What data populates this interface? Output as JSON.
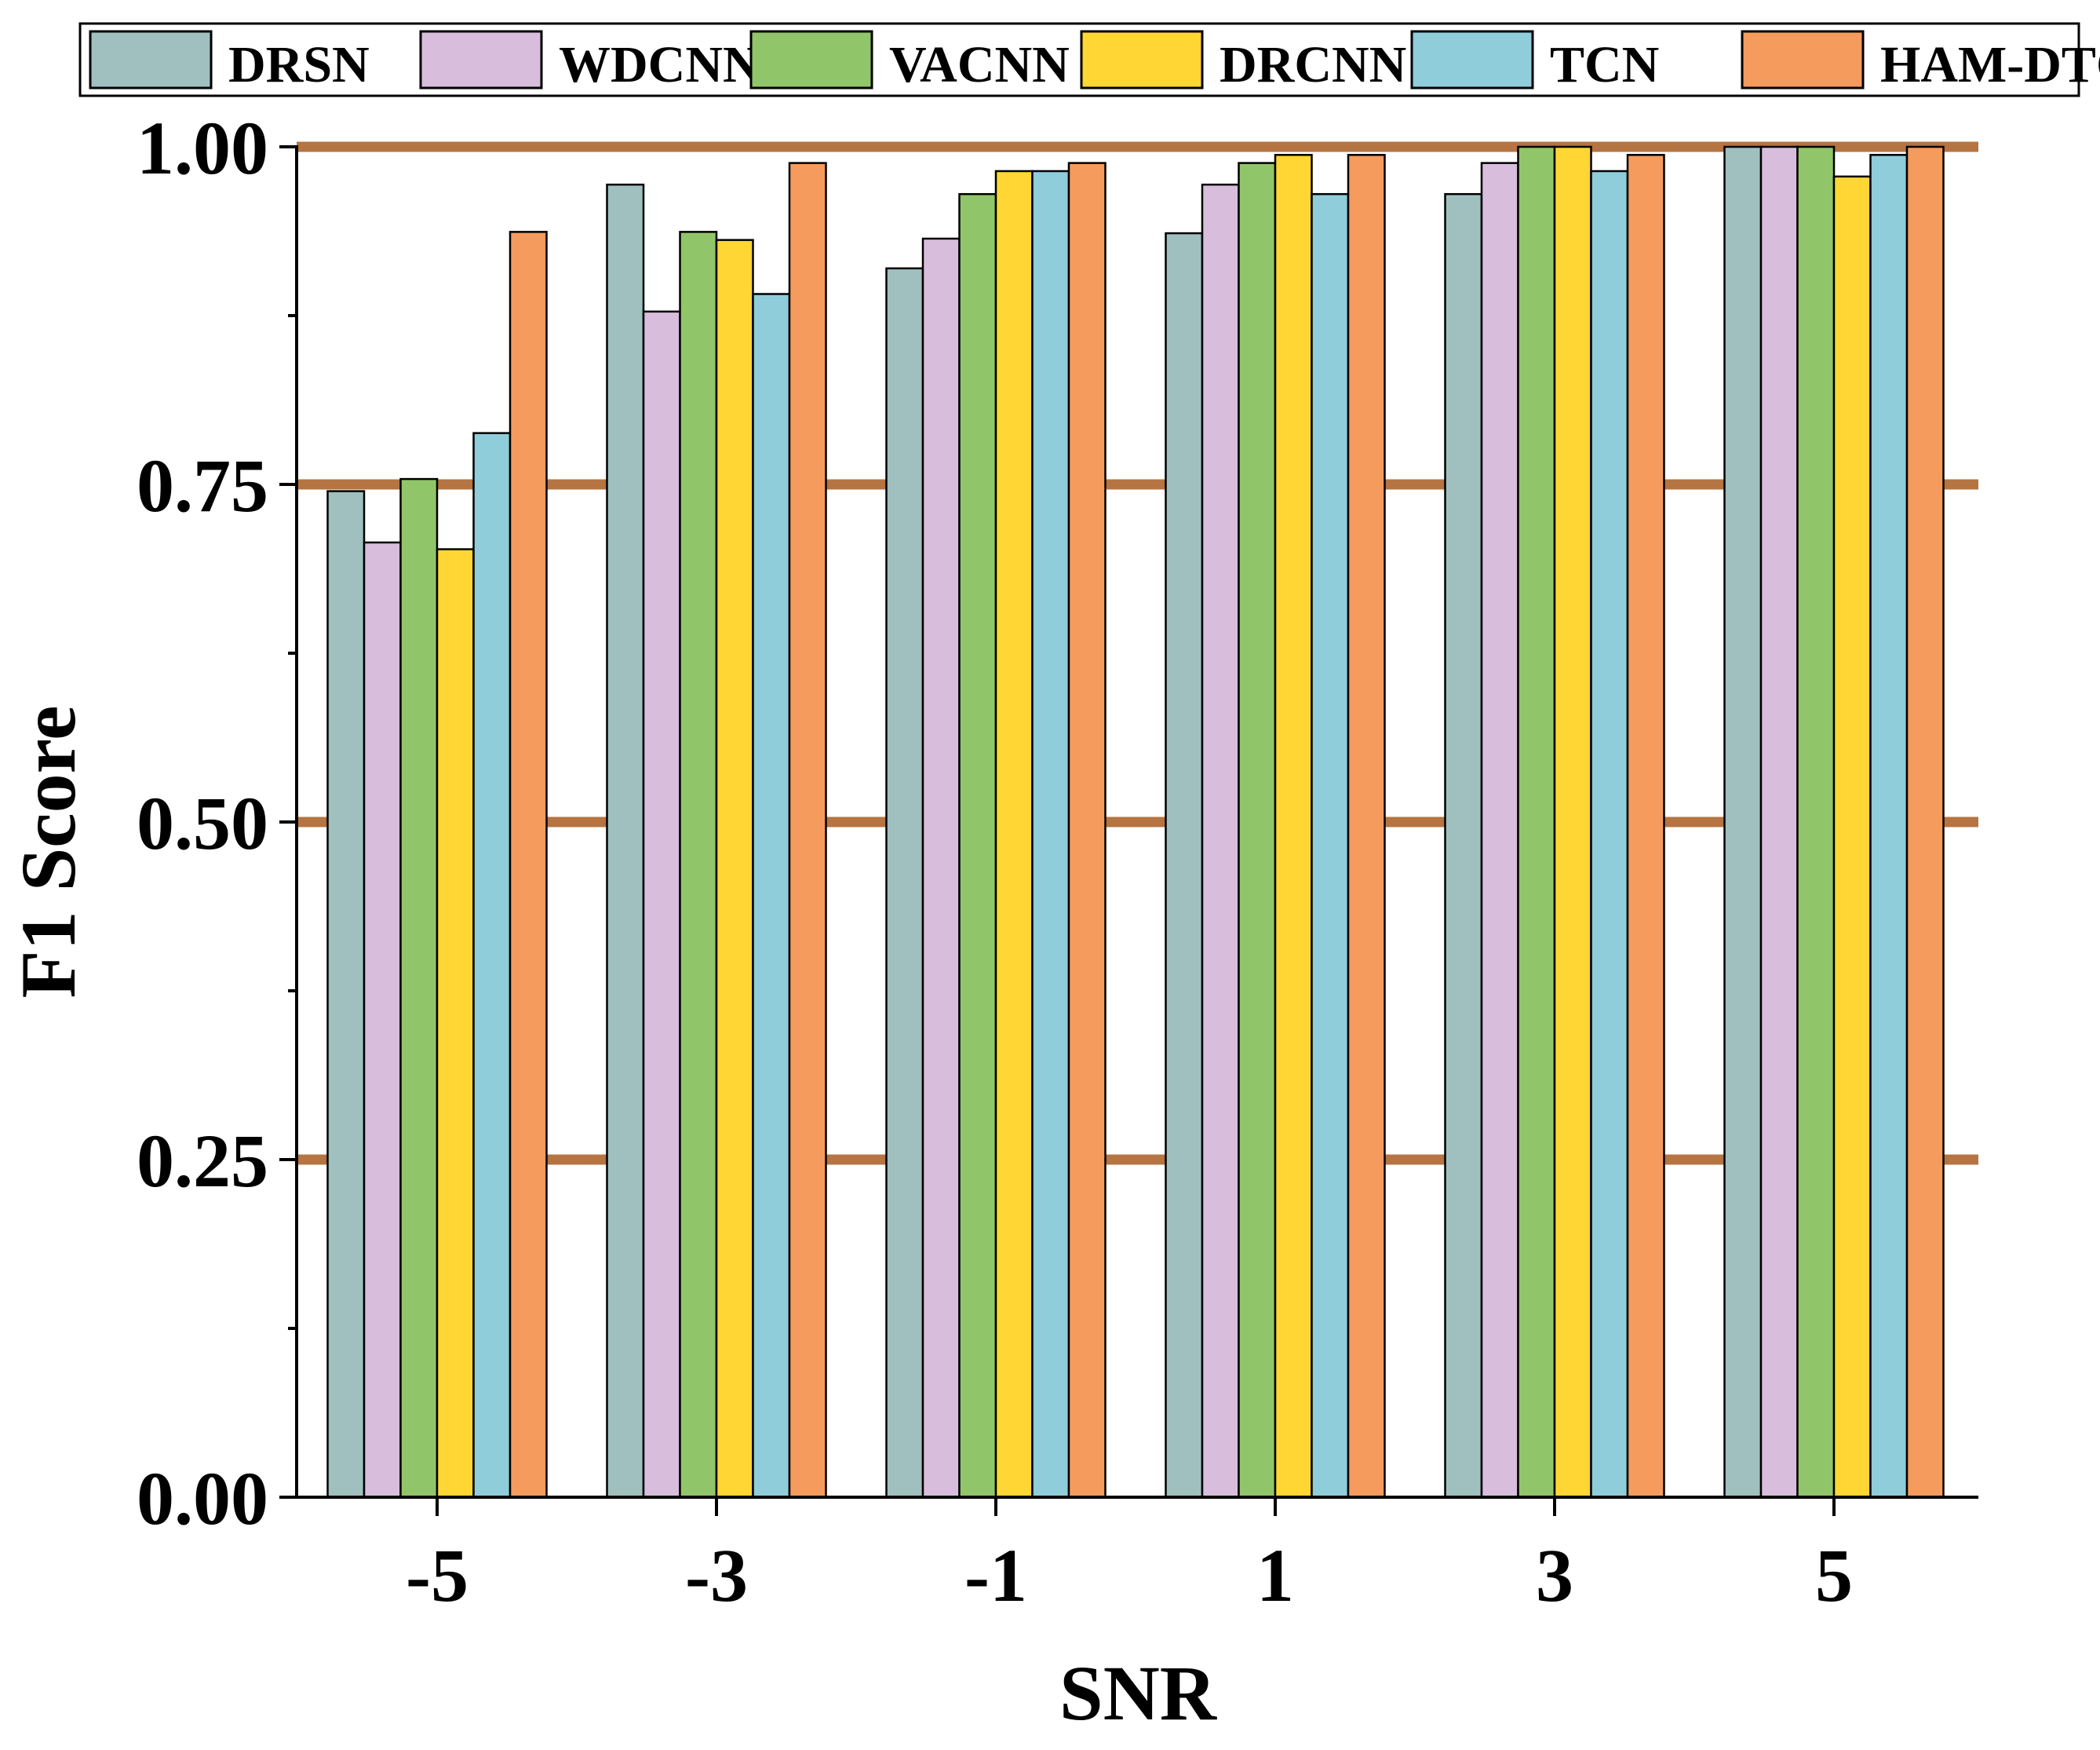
{
  "chart_data": {
    "type": "bar",
    "title": "",
    "xlabel": "SNR",
    "ylabel": "F1 Score",
    "categories": [
      "-5",
      "-3",
      "-1",
      "1",
      "3",
      "5"
    ],
    "ylim": [
      0,
      1
    ],
    "yticks": [
      0.0,
      0.25,
      0.5,
      0.75,
      1.0
    ],
    "ytick_labels": [
      "0.00",
      "0.25",
      "0.50",
      "0.75",
      "1.00"
    ],
    "grid": "horizontal at major ticks",
    "legend_position": "top",
    "series": [
      {
        "name": "DRSN",
        "color": "#9FC0BE",
        "values": [
          0.745,
          0.972,
          0.91,
          0.936,
          0.965,
          1.0
        ]
      },
      {
        "name": "WDCNN",
        "color": "#D8BDDC",
        "values": [
          0.707,
          0.878,
          0.932,
          0.972,
          0.988,
          1.0
        ]
      },
      {
        "name": "VACNN",
        "color": "#91C56A",
        "values": [
          0.754,
          0.937,
          0.965,
          0.988,
          1.0,
          1.0
        ]
      },
      {
        "name": "DRCNN",
        "color": "#FFD633",
        "values": [
          0.702,
          0.931,
          0.982,
          0.994,
          1.0,
          0.978
        ]
      },
      {
        "name": "TCN",
        "color": "#8FCDDB",
        "values": [
          0.788,
          0.891,
          0.982,
          0.965,
          0.982,
          0.994
        ]
      },
      {
        "name": "HAM-DTCN",
        "color": "#F59B5D",
        "values": [
          0.937,
          0.988,
          0.988,
          0.994,
          0.994,
          1.0
        ]
      }
    ],
    "colors": {
      "axis": "#000000",
      "gridline": "#B57441",
      "bar_outline": "#000000"
    }
  }
}
